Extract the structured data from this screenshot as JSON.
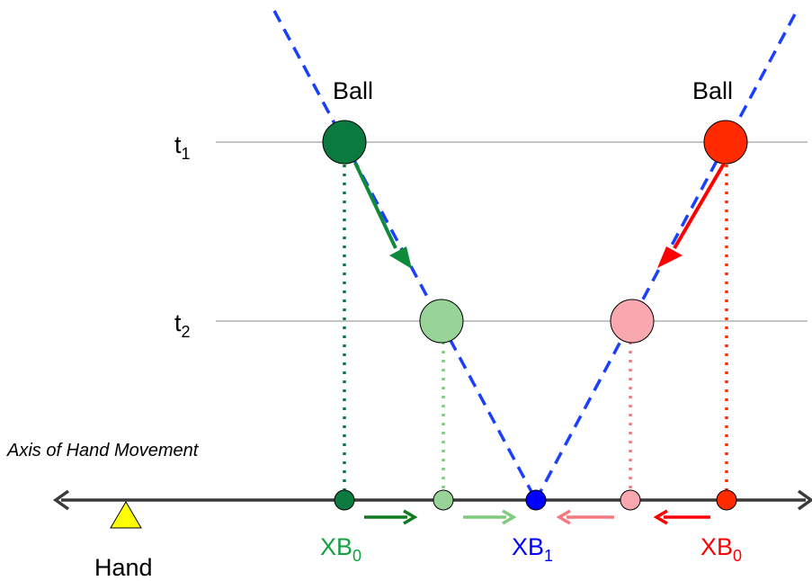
{
  "labels": {
    "ball_left": "Ball",
    "ball_right": "Ball",
    "t1_main": "t",
    "t1_sub": "1",
    "t2_main": "t",
    "t2_sub": "2",
    "axis_title": "Axis of Hand Movement",
    "hand": "Hand",
    "xb0_green_main": "XB",
    "xb0_green_sub": "0",
    "xb1_main": "XB",
    "xb1_sub": "1",
    "xb0_red_main": "XB",
    "xb0_red_sub": "0"
  },
  "colors": {
    "green_dark": "#0a7a3e",
    "green_light": "#98d498",
    "green_arrow": "#0f8a3c",
    "green_arrow_light": "#7fcc7f",
    "red": "#ff2a00",
    "red_light": "#f8a8ae",
    "red_arrow_light": "#f57a7f",
    "blue": "#1a3fff",
    "blue_point": "#0000ff",
    "hand_yellow": "#ffff00",
    "axis": "#3a3a3a",
    "time_line": "#a0a0a0"
  },
  "icons": {
    "hand": "yellow-triangle"
  }
}
